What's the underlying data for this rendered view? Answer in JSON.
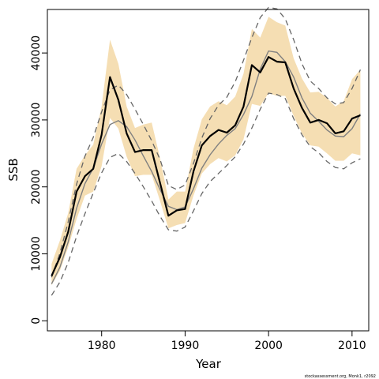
{
  "chart_data": {
    "type": "line",
    "xlabel": "Year",
    "ylabel": "SSB",
    "xlim": [
      1973.5,
      2012.0
    ],
    "ylim": [
      -1500,
      46500
    ],
    "x_ticks": [
      1980,
      1990,
      2000,
      2010
    ],
    "y_ticks": [
      0,
      10000,
      20000,
      30000,
      40000
    ],
    "x_tick_labels": [
      "1980",
      "1990",
      "2000",
      "2010"
    ],
    "y_tick_labels": [
      "0",
      "10000",
      "20000",
      "30000",
      "40000"
    ],
    "grid": false,
    "legend": "none",
    "credit": "stockassessment.org, Monk1, r2092",
    "colors": {
      "band": "#f5deb3",
      "estimate": "#000000",
      "alt_estimate": "#808080",
      "alt_interval": "#666666"
    },
    "series": [
      {
        "role": "estimate",
        "x": [
          1974,
          1975,
          1976,
          1977,
          1978,
          1979,
          1980,
          1981,
          1982,
          1983,
          1984,
          1985,
          1986,
          1987,
          1988,
          1989,
          1990,
          1991,
          1992,
          1993,
          1994,
          1995,
          1996,
          1997,
          1998,
          1999,
          2000,
          2001,
          2002,
          2003,
          2004,
          2005,
          2006,
          2007,
          2008,
          2009,
          2010,
          2011
        ],
        "y": [
          6700,
          9500,
          13300,
          19300,
          21600,
          22700,
          27800,
          36400,
          33000,
          28000,
          25200,
          25500,
          25500,
          20600,
          15700,
          16500,
          16700,
          22300,
          26200,
          27600,
          28500,
          28100,
          29200,
          32000,
          38200,
          37100,
          39400,
          38700,
          38600,
          34700,
          31800,
          29600,
          30000,
          29500,
          28000,
          28300,
          30200,
          30700
        ]
      },
      {
        "role": "confidence-band",
        "x": [
          1974,
          1975,
          1976,
          1977,
          1978,
          1979,
          1980,
          1981,
          1982,
          1983,
          1984,
          1985,
          1986,
          1987,
          1988,
          1989,
          1990,
          1991,
          1992,
          1993,
          1994,
          1995,
          1996,
          1997,
          1998,
          1999,
          2000,
          2001,
          2002,
          2003,
          2004,
          2005,
          2006,
          2007,
          2008,
          2009,
          2010,
          2011
        ],
        "lower": [
          5300,
          7500,
          11000,
          15200,
          18700,
          19300,
          23100,
          30300,
          28700,
          24500,
          21600,
          21800,
          21800,
          17900,
          13800,
          14300,
          14600,
          18700,
          22000,
          23400,
          24300,
          23800,
          24700,
          27100,
          32400,
          32100,
          34000,
          33600,
          33600,
          30600,
          28000,
          26200,
          26000,
          25000,
          23900,
          23900,
          25000,
          24700
        ],
        "upper": [
          8500,
          12000,
          16100,
          22700,
          24700,
          26300,
          32000,
          42000,
          38400,
          32000,
          28800,
          29300,
          29600,
          24300,
          18100,
          19300,
          19300,
          25700,
          30100,
          32000,
          32800,
          32200,
          33500,
          36900,
          43600,
          42300,
          45400,
          44600,
          44100,
          39200,
          36200,
          34100,
          34200,
          33300,
          32000,
          32800,
          36100,
          37500
        ]
      },
      {
        "role": "alternative-estimate",
        "x": [
          1974,
          1975,
          1976,
          1977,
          1978,
          1979,
          1980,
          1981,
          1982,
          1983,
          1984,
          1985,
          1986,
          1987,
          1988,
          1989,
          1990,
          1991,
          1992,
          1993,
          1994,
          1995,
          1996,
          1997,
          1998,
          1999,
          2000,
          2001,
          2002,
          2003,
          2004,
          2005,
          2006,
          2007,
          2008,
          2009,
          2010,
          2011
        ],
        "y": [
          5500,
          8000,
          11800,
          16800,
          20500,
          22800,
          26400,
          29300,
          29900,
          29000,
          27000,
          24600,
          22300,
          19600,
          17100,
          16600,
          17000,
          19700,
          22800,
          24800,
          26400,
          27700,
          28700,
          30800,
          33500,
          37600,
          40300,
          40100,
          38700,
          36400,
          33300,
          31000,
          29800,
          28500,
          27600,
          27500,
          28700,
          30900
        ]
      },
      {
        "role": "alternative-interval",
        "x": [
          1974,
          1975,
          1976,
          1977,
          1978,
          1979,
          1980,
          1981,
          1982,
          1983,
          1984,
          1985,
          1986,
          1987,
          1988,
          1989,
          1990,
          1991,
          1992,
          1993,
          1994,
          1995,
          1996,
          1997,
          1998,
          1999,
          2000,
          2001,
          2002,
          2003,
          2004,
          2005,
          2006,
          2007,
          2008,
          2009,
          2010,
          2011
        ],
        "lower": [
          3800,
          5800,
          8700,
          12600,
          16000,
          19100,
          22100,
          24400,
          25000,
          23800,
          22000,
          20000,
          17900,
          15600,
          13600,
          13400,
          14000,
          16400,
          19000,
          20800,
          22000,
          23200,
          24500,
          26400,
          28800,
          31600,
          34000,
          33800,
          33200,
          30200,
          27800,
          26000,
          25100,
          23800,
          22900,
          22700,
          23600,
          24200
        ],
        "upper": [
          6500,
          10100,
          14800,
          20400,
          24600,
          27400,
          31200,
          34500,
          35200,
          33800,
          31600,
          29300,
          26900,
          24100,
          20200,
          19600,
          20300,
          23500,
          27300,
          30200,
          32200,
          33400,
          35700,
          38900,
          42300,
          45300,
          46800,
          46600,
          45100,
          42000,
          38400,
          35800,
          34700,
          33300,
          32400,
          32600,
          34700,
          37500
        ]
      }
    ]
  }
}
